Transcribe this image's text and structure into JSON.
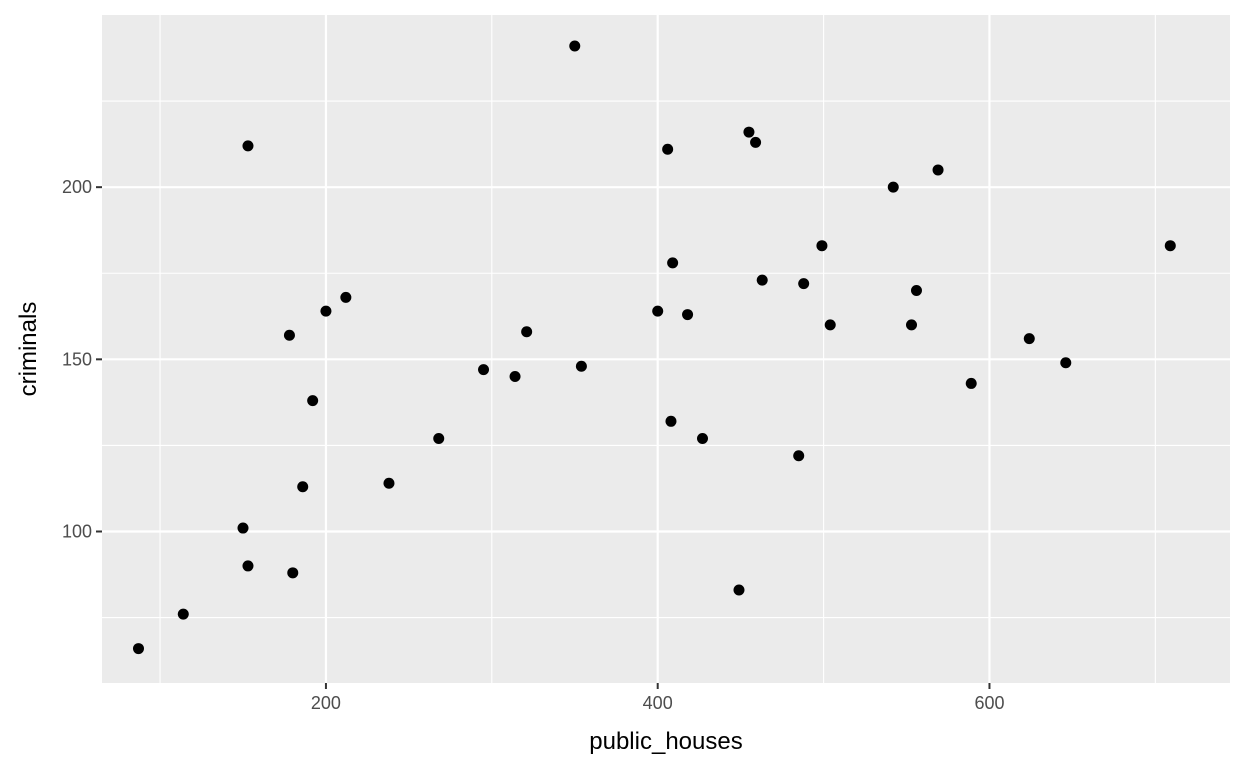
{
  "chart_data": {
    "type": "scatter",
    "title": "",
    "xlabel": "public_houses",
    "ylabel": "criminals",
    "xlim": [
      65,
      745
    ],
    "ylim": [
      56,
      250
    ],
    "x_ticks": [
      200,
      400,
      600
    ],
    "x_tick_labels": [
      "200",
      "400",
      "600"
    ],
    "x_minor_ticks": [
      100,
      300,
      500,
      700
    ],
    "y_ticks": [
      100,
      150,
      200
    ],
    "y_tick_labels": [
      "100",
      "150",
      "200"
    ],
    "y_minor_ticks": [
      75,
      125,
      175,
      225
    ],
    "grid": true,
    "legend": "none",
    "colors": {
      "panel": "#EBEBEB",
      "grid": "#FFFFFF",
      "point": "#000000",
      "tick_text": "#4D4D4D"
    },
    "points": [
      {
        "x": 87,
        "y": 66
      },
      {
        "x": 114,
        "y": 76
      },
      {
        "x": 150,
        "y": 101
      },
      {
        "x": 153,
        "y": 90
      },
      {
        "x": 153,
        "y": 212
      },
      {
        "x": 178,
        "y": 157
      },
      {
        "x": 180,
        "y": 88
      },
      {
        "x": 186,
        "y": 113
      },
      {
        "x": 192,
        "y": 138
      },
      {
        "x": 200,
        "y": 164
      },
      {
        "x": 212,
        "y": 168
      },
      {
        "x": 238,
        "y": 114
      },
      {
        "x": 268,
        "y": 127
      },
      {
        "x": 295,
        "y": 147
      },
      {
        "x": 314,
        "y": 145
      },
      {
        "x": 321,
        "y": 158
      },
      {
        "x": 350,
        "y": 241
      },
      {
        "x": 354,
        "y": 148
      },
      {
        "x": 400,
        "y": 164
      },
      {
        "x": 406,
        "y": 211
      },
      {
        "x": 408,
        "y": 132
      },
      {
        "x": 409,
        "y": 178
      },
      {
        "x": 418,
        "y": 163
      },
      {
        "x": 427,
        "y": 127
      },
      {
        "x": 449,
        "y": 83
      },
      {
        "x": 455,
        "y": 216
      },
      {
        "x": 459,
        "y": 213
      },
      {
        "x": 463,
        "y": 173
      },
      {
        "x": 485,
        "y": 122
      },
      {
        "x": 488,
        "y": 172
      },
      {
        "x": 499,
        "y": 183
      },
      {
        "x": 504,
        "y": 160
      },
      {
        "x": 542,
        "y": 200
      },
      {
        "x": 553,
        "y": 160
      },
      {
        "x": 556,
        "y": 170
      },
      {
        "x": 569,
        "y": 205
      },
      {
        "x": 589,
        "y": 143
      },
      {
        "x": 624,
        "y": 156
      },
      {
        "x": 646,
        "y": 149
      },
      {
        "x": 709,
        "y": 183
      }
    ]
  }
}
